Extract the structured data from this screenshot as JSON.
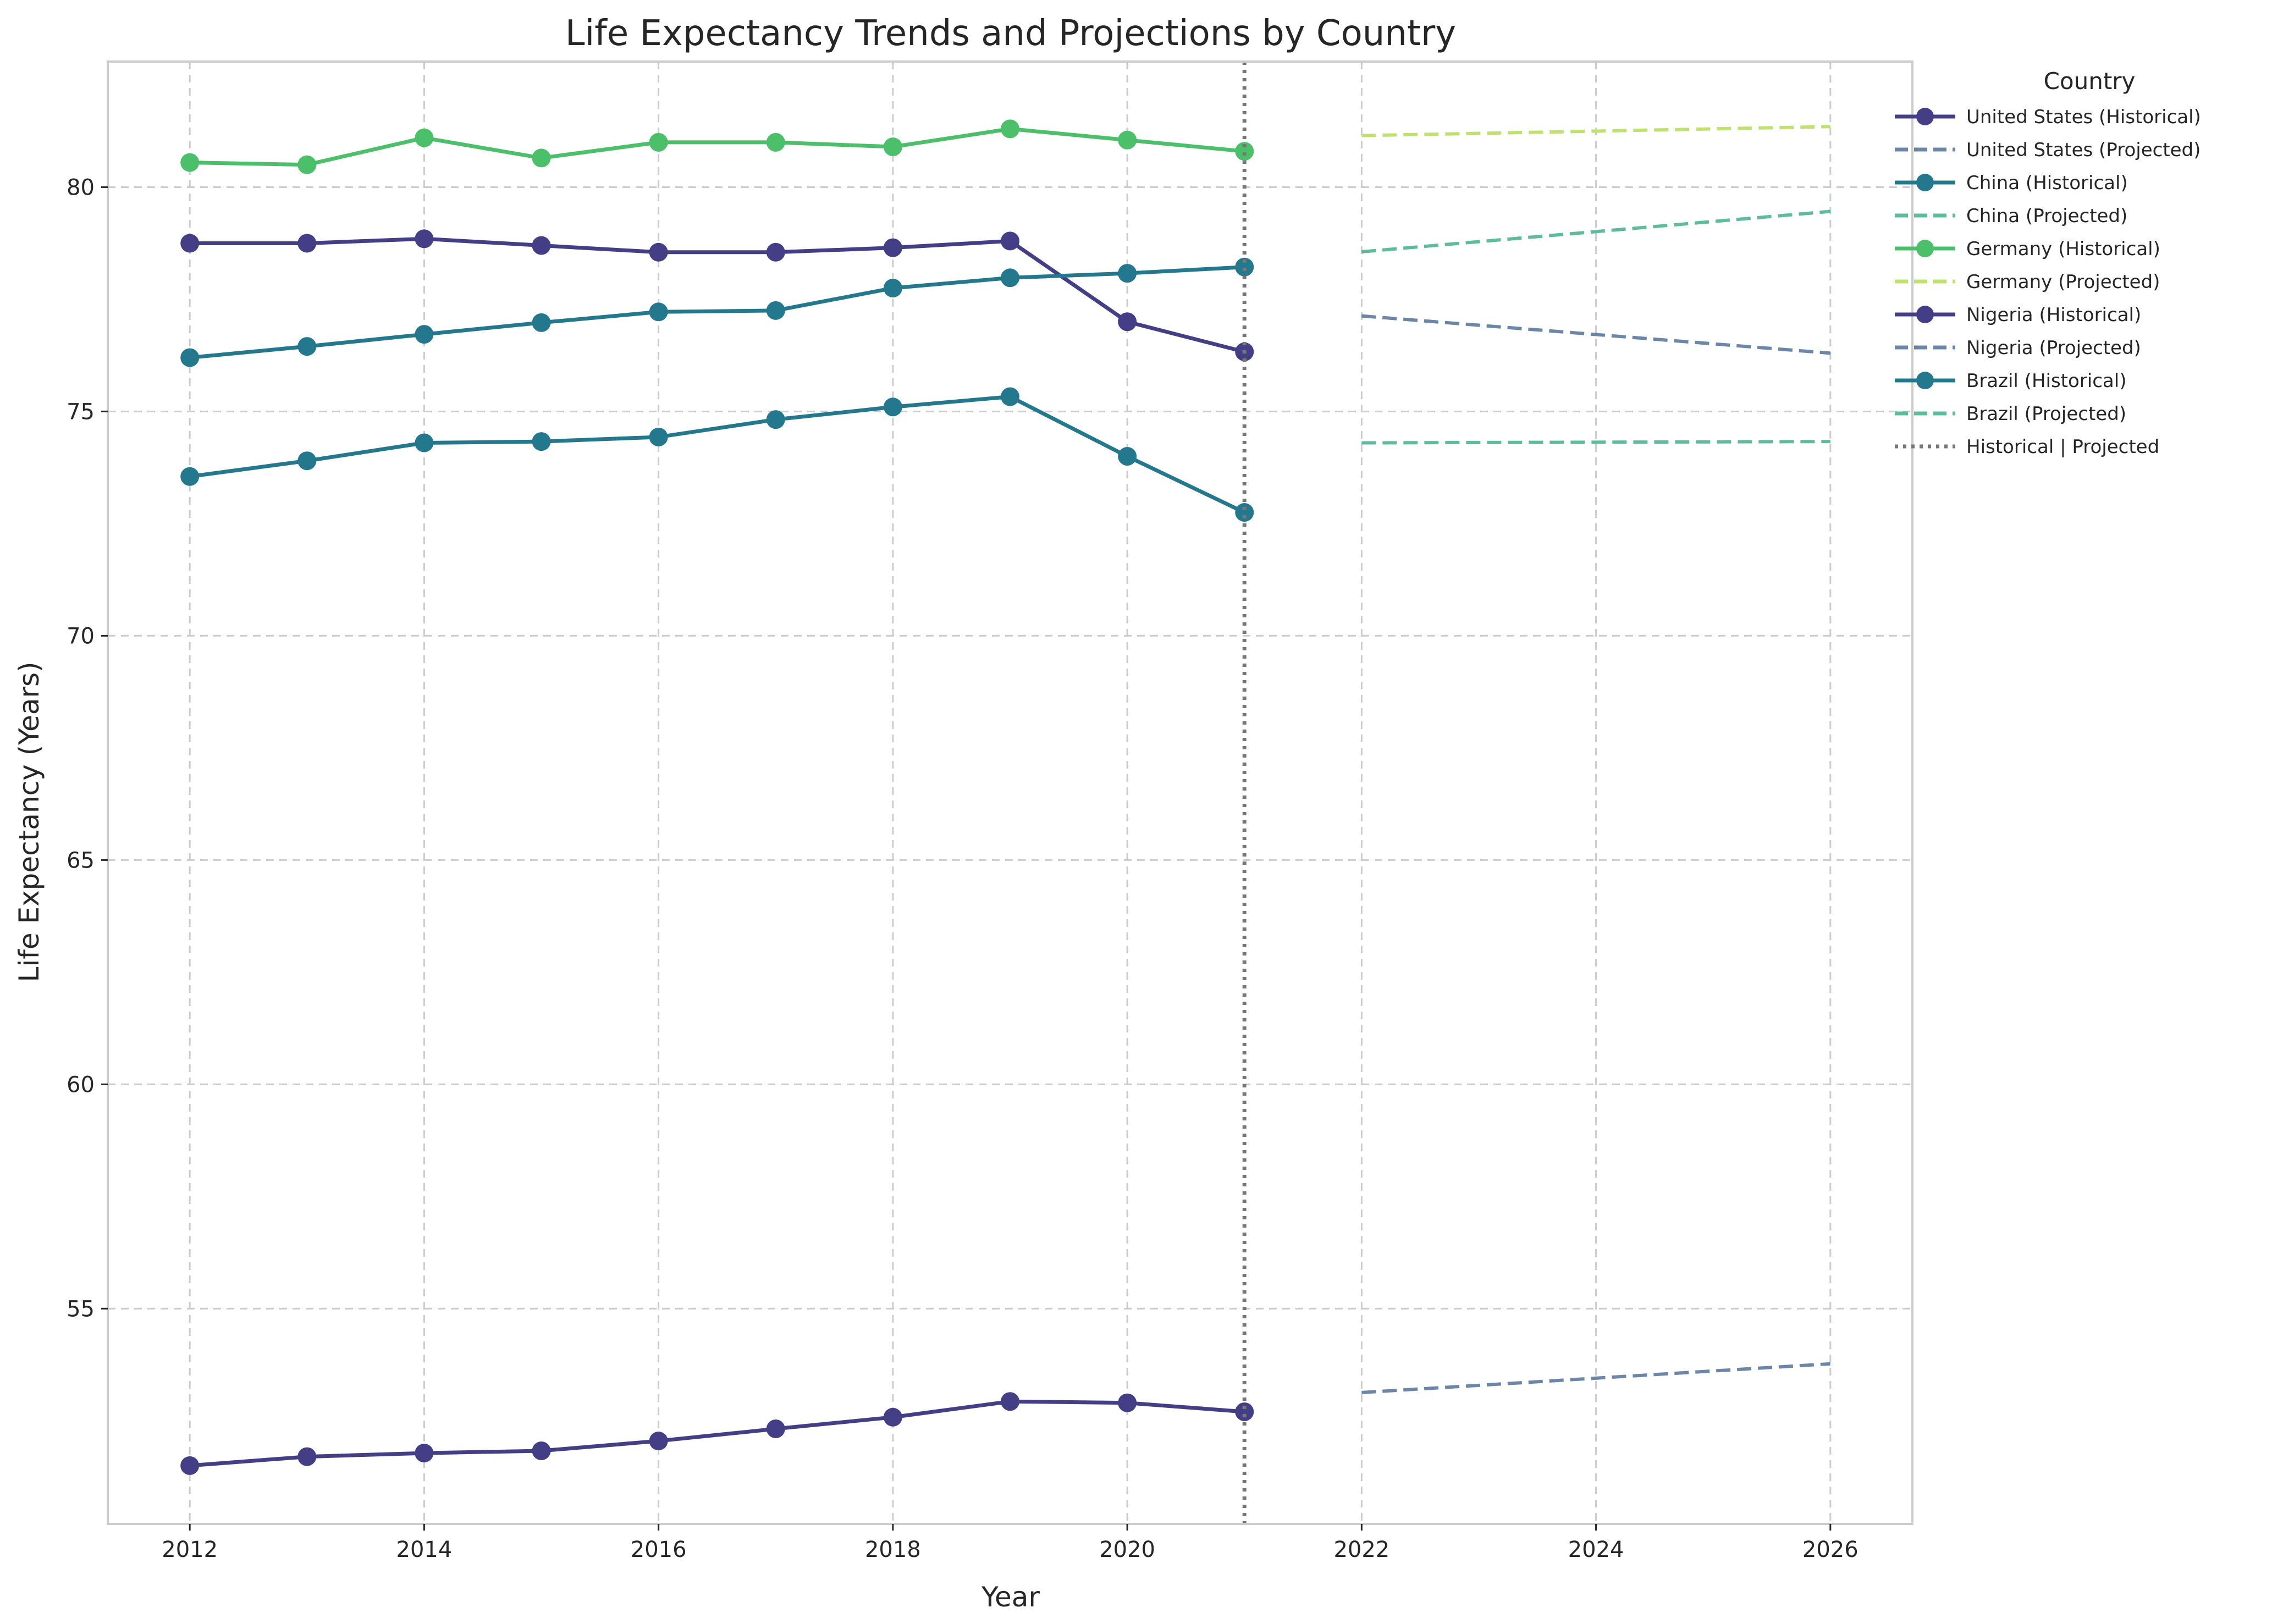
{
  "chart_data": {
    "type": "line",
    "title": "Life Expectancy Trends and Projections by Country",
    "xlabel": "Year",
    "ylabel": "Life Expectancy (Years)",
    "xlim": [
      2011.3,
      2026.7
    ],
    "ylim": [
      50.2,
      82.8
    ],
    "x_ticks": [
      2012,
      2014,
      2016,
      2018,
      2020,
      2022,
      2024,
      2026
    ],
    "y_ticks": [
      55,
      60,
      65,
      70,
      75,
      80
    ],
    "grid": true,
    "legend": {
      "title": "Country",
      "placement": "outside-right"
    },
    "divider": {
      "x": 2021,
      "label": "Historical | Projected",
      "color": "#777777"
    },
    "series": [
      {
        "name": "United States (Historical)",
        "kind": "historical",
        "color": "#433e85",
        "x": [
          2012,
          2013,
          2014,
          2015,
          2016,
          2017,
          2018,
          2019,
          2020,
          2021
        ],
        "y": [
          78.75,
          78.75,
          78.85,
          78.7,
          78.55,
          78.55,
          78.65,
          78.8,
          77.0,
          76.33
        ]
      },
      {
        "name": "United States (Projected)",
        "kind": "projected",
        "color": "#6b86a8",
        "x": [
          2022,
          2026
        ],
        "y": [
          77.13,
          76.3
        ]
      },
      {
        "name": "China (Historical)",
        "kind": "historical",
        "color": "#24788e",
        "x": [
          2012,
          2013,
          2014,
          2015,
          2016,
          2017,
          2018,
          2019,
          2020,
          2021
        ],
        "y": [
          76.2,
          76.45,
          76.72,
          76.98,
          77.22,
          77.25,
          77.75,
          77.98,
          78.08,
          78.22
        ]
      },
      {
        "name": "China (Projected)",
        "kind": "projected",
        "color": "#5cbc9c",
        "x": [
          2022,
          2026
        ],
        "y": [
          78.56,
          79.46
        ]
      },
      {
        "name": "Germany (Historical)",
        "kind": "historical",
        "color": "#4cbf6b",
        "x": [
          2012,
          2013,
          2014,
          2015,
          2016,
          2017,
          2018,
          2019,
          2020,
          2021
        ],
        "y": [
          80.55,
          80.5,
          81.1,
          80.65,
          81.0,
          81.0,
          80.9,
          81.3,
          81.05,
          80.8
        ]
      },
      {
        "name": "Germany (Projected)",
        "kind": "projected",
        "color": "#bfe26f",
        "x": [
          2022,
          2026
        ],
        "y": [
          81.15,
          81.35
        ]
      },
      {
        "name": "Nigeria (Historical)",
        "kind": "historical",
        "color": "#433e85",
        "x": [
          2012,
          2013,
          2014,
          2015,
          2016,
          2017,
          2018,
          2019,
          2020,
          2021
        ],
        "y": [
          51.5,
          51.7,
          51.78,
          51.83,
          52.05,
          52.32,
          52.58,
          52.93,
          52.9,
          52.7
        ]
      },
      {
        "name": "Nigeria (Projected)",
        "kind": "projected",
        "color": "#6b86a8",
        "x": [
          2022,
          2026
        ],
        "y": [
          53.13,
          53.77
        ]
      },
      {
        "name": "Brazil (Historical)",
        "kind": "historical",
        "color": "#24788e",
        "x": [
          2012,
          2013,
          2014,
          2015,
          2016,
          2017,
          2018,
          2019,
          2020,
          2021
        ],
        "y": [
          73.55,
          73.9,
          74.3,
          74.33,
          74.43,
          74.82,
          75.1,
          75.33,
          74.0,
          72.75
        ]
      },
      {
        "name": "Brazil (Projected)",
        "kind": "projected",
        "color": "#5cbc9c",
        "x": [
          2022,
          2026
        ],
        "y": [
          74.3,
          74.33
        ]
      }
    ]
  }
}
